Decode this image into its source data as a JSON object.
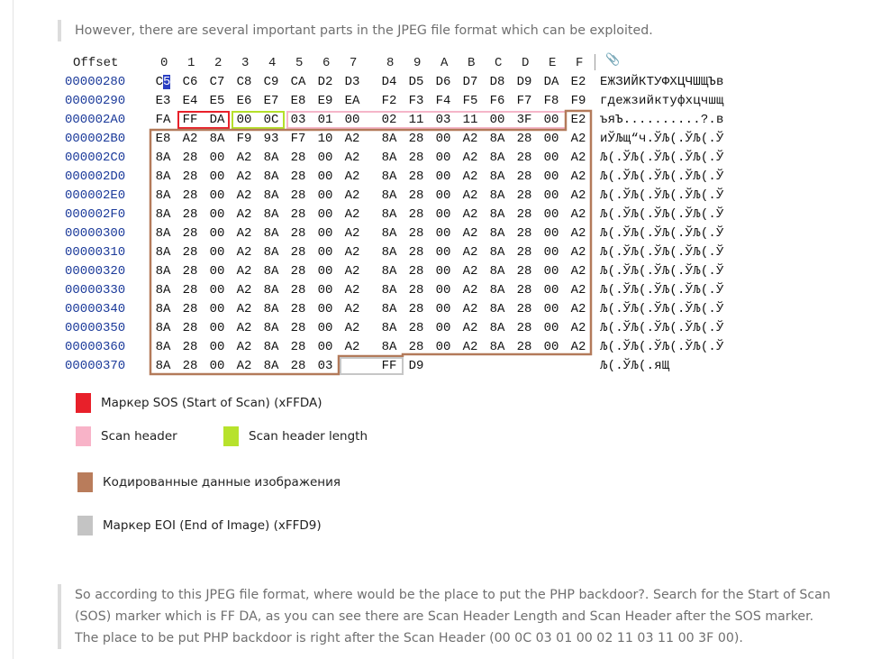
{
  "intro_text": "However, there are several important parts in the JPEG file format which can be exploited.",
  "hex": {
    "header_label": "Offset",
    "columns": [
      "0",
      "1",
      "2",
      "3",
      "4",
      "5",
      "6",
      "7",
      "8",
      "9",
      "A",
      "B",
      "C",
      "D",
      "E",
      "F"
    ],
    "rows": [
      {
        "offset": "00000280",
        "bytes": [
          "C5",
          "C6",
          "C7",
          "C8",
          "C9",
          "CA",
          "D2",
          "D3",
          "D4",
          "D5",
          "D6",
          "D7",
          "D8",
          "D9",
          "DA",
          "E2"
        ],
        "ascii": "ЕЖЗИЙКТУФХЦЧШЩЪв"
      },
      {
        "offset": "00000290",
        "bytes": [
          "E3",
          "E4",
          "E5",
          "E6",
          "E7",
          "E8",
          "E9",
          "EA",
          "F2",
          "F3",
          "F4",
          "F5",
          "F6",
          "F7",
          "F8",
          "F9"
        ],
        "ascii": "гдежзийктуфхцчшщ"
      },
      {
        "offset": "000002A0",
        "bytes": [
          "FA",
          "FF",
          "DA",
          "00",
          "0C",
          "03",
          "01",
          "00",
          "02",
          "11",
          "03",
          "11",
          "00",
          "3F",
          "00",
          "E2"
        ],
        "ascii": "ъяЪ..........?.в"
      },
      {
        "offset": "000002B0",
        "bytes": [
          "E8",
          "A2",
          "8A",
          "F9",
          "93",
          "F7",
          "10",
          "A2",
          "8A",
          "28",
          "00",
          "A2",
          "8A",
          "28",
          "00",
          "A2"
        ],
        "ascii": "иЎЉщ“ч.ЎЉ(.ЎЉ(.Ў"
      },
      {
        "offset": "000002C0",
        "bytes": [
          "8A",
          "28",
          "00",
          "A2",
          "8A",
          "28",
          "00",
          "A2",
          "8A",
          "28",
          "00",
          "A2",
          "8A",
          "28",
          "00",
          "A2"
        ],
        "ascii": "Љ(.ЎЉ(.ЎЉ(.ЎЉ(.Ў"
      },
      {
        "offset": "000002D0",
        "bytes": [
          "8A",
          "28",
          "00",
          "A2",
          "8A",
          "28",
          "00",
          "A2",
          "8A",
          "28",
          "00",
          "A2",
          "8A",
          "28",
          "00",
          "A2"
        ],
        "ascii": "Љ(.ЎЉ(.ЎЉ(.ЎЉ(.Ў"
      },
      {
        "offset": "000002E0",
        "bytes": [
          "8A",
          "28",
          "00",
          "A2",
          "8A",
          "28",
          "00",
          "A2",
          "8A",
          "28",
          "00",
          "A2",
          "8A",
          "28",
          "00",
          "A2"
        ],
        "ascii": "Љ(.ЎЉ(.ЎЉ(.ЎЉ(.Ў"
      },
      {
        "offset": "000002F0",
        "bytes": [
          "8A",
          "28",
          "00",
          "A2",
          "8A",
          "28",
          "00",
          "A2",
          "8A",
          "28",
          "00",
          "A2",
          "8A",
          "28",
          "00",
          "A2"
        ],
        "ascii": "Љ(.ЎЉ(.ЎЉ(.ЎЉ(.Ў"
      },
      {
        "offset": "00000300",
        "bytes": [
          "8A",
          "28",
          "00",
          "A2",
          "8A",
          "28",
          "00",
          "A2",
          "8A",
          "28",
          "00",
          "A2",
          "8A",
          "28",
          "00",
          "A2"
        ],
        "ascii": "Љ(.ЎЉ(.ЎЉ(.ЎЉ(.Ў"
      },
      {
        "offset": "00000310",
        "bytes": [
          "8A",
          "28",
          "00",
          "A2",
          "8A",
          "28",
          "00",
          "A2",
          "8A",
          "28",
          "00",
          "A2",
          "8A",
          "28",
          "00",
          "A2"
        ],
        "ascii": "Љ(.ЎЉ(.ЎЉ(.ЎЉ(.Ў"
      },
      {
        "offset": "00000320",
        "bytes": [
          "8A",
          "28",
          "00",
          "A2",
          "8A",
          "28",
          "00",
          "A2",
          "8A",
          "28",
          "00",
          "A2",
          "8A",
          "28",
          "00",
          "A2"
        ],
        "ascii": "Љ(.ЎЉ(.ЎЉ(.ЎЉ(.Ў"
      },
      {
        "offset": "00000330",
        "bytes": [
          "8A",
          "28",
          "00",
          "A2",
          "8A",
          "28",
          "00",
          "A2",
          "8A",
          "28",
          "00",
          "A2",
          "8A",
          "28",
          "00",
          "A2"
        ],
        "ascii": "Љ(.ЎЉ(.ЎЉ(.ЎЉ(.Ў"
      },
      {
        "offset": "00000340",
        "bytes": [
          "8A",
          "28",
          "00",
          "A2",
          "8A",
          "28",
          "00",
          "A2",
          "8A",
          "28",
          "00",
          "A2",
          "8A",
          "28",
          "00",
          "A2"
        ],
        "ascii": "Љ(.ЎЉ(.ЎЉ(.ЎЉ(.Ў"
      },
      {
        "offset": "00000350",
        "bytes": [
          "8A",
          "28",
          "00",
          "A2",
          "8A",
          "28",
          "00",
          "A2",
          "8A",
          "28",
          "00",
          "A2",
          "8A",
          "28",
          "00",
          "A2"
        ],
        "ascii": "Љ(.ЎЉ(.ЎЉ(.ЎЉ(.Ў"
      },
      {
        "offset": "00000360",
        "bytes": [
          "8A",
          "28",
          "00",
          "A2",
          "8A",
          "28",
          "00",
          "A2",
          "8A",
          "28",
          "00",
          "A2",
          "8A",
          "28",
          "00",
          "A2"
        ],
        "ascii": "Љ(.ЎЉ(.ЎЉ(.ЎЉ(.Ў"
      },
      {
        "offset": "00000370",
        "bytes": [
          "8A",
          "28",
          "00",
          "A2",
          "8A",
          "28",
          "03",
          "",
          "FF",
          "D9",
          "",
          "",
          "",
          "",
          "",
          ""
        ],
        "ascii": "Љ(.ЎЉ(.яЩ"
      }
    ],
    "colors": {
      "sos": "#e8202a",
      "scan_header": "#f5b6c9",
      "scan_header_length": "#b5e02b",
      "image_data": "#b37a5a",
      "eoi": "#c6c6c6",
      "selection": "#2b3fc2"
    }
  },
  "legend": [
    {
      "label": "Маркер SOS (Start of Scan) (xFFDA)",
      "color": "#e8202a"
    },
    {
      "label": "Scan header",
      "color": "#f8b3c8"
    },
    {
      "label": "Scan header length",
      "color": "#b7e22c"
    },
    {
      "label": "Кодированные данные изображения",
      "color": "#b97c5b"
    },
    {
      "label": "Маркер EOI (End of Image) (xFFD9)",
      "color": "#c4c4c4"
    }
  ],
  "outro_text": "So according to this JPEG file format, where would be the place to put the PHP backdoor?. Search for the Start of Scan (SOS) marker which is FF DA, as you can see there are Scan Header Length and Scan Header after the SOS marker. The place to be put PHP backdoor is right after the Scan Header (00 0C 03 01 00 02 11 03 11 00 3F 00)."
}
